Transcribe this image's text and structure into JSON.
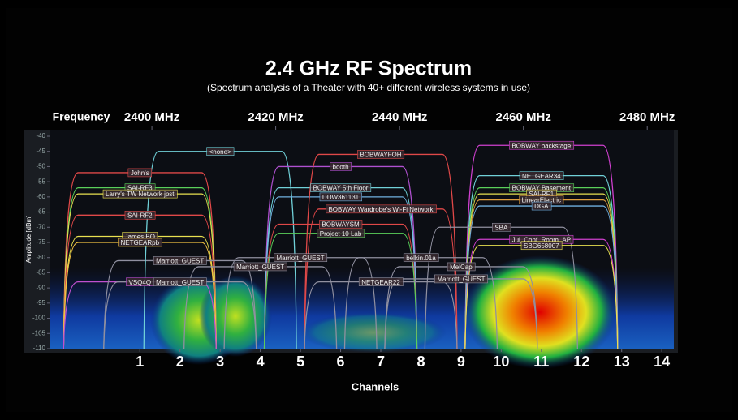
{
  "chart_data": {
    "type": "spectrum",
    "title": "2.4 GHz RF Spectrum",
    "subtitle": "(Spectrum analysis of a Theater with 40+ different wireless systems in use)",
    "frequency_label": "Frequency",
    "y_label": "Amplitude [dBm]",
    "x_label": "Channels",
    "xlim": [
      -1.23,
      14.3
    ],
    "xticks": [
      1,
      2,
      3,
      4,
      5,
      6,
      7,
      8,
      9,
      10,
      11,
      12,
      13,
      14
    ],
    "x2lim": [
      2383.6,
      2484.3
    ],
    "x2ticks": [
      {
        "value": 2400,
        "label": "2400 MHz"
      },
      {
        "value": 2420,
        "label": "2420 MHz"
      },
      {
        "value": 2440,
        "label": "2440 MHz"
      },
      {
        "value": 2460,
        "label": "2460 MHz"
      },
      {
        "value": 2480,
        "label": "2480 MHz"
      }
    ],
    "ylim": [
      -110,
      -40
    ],
    "yticks": [
      -40,
      -45,
      -50,
      -55,
      -60,
      -65,
      -70,
      -75,
      -80,
      -85,
      -90,
      -95,
      -100,
      -105,
      -110
    ],
    "networks": [
      {
        "name": "John's",
        "channel": 1,
        "level": -52,
        "color": "#e04848"
      },
      {
        "name": "SAI-RF3",
        "channel": 1,
        "level": -57,
        "color": "#5ad05a"
      },
      {
        "name": "Larry's TW Network jpst",
        "channel": 1,
        "level": -59,
        "color": "#e8e050"
      },
      {
        "name": "SAI-RF2",
        "channel": 1,
        "level": -66,
        "color": "#e04848"
      },
      {
        "name": "James BO",
        "channel": 1,
        "level": -73,
        "color": "#e8e050"
      },
      {
        "name": "NETGEARpb",
        "channel": 1,
        "level": -75,
        "color": "#f0c040"
      },
      {
        "name": "VSQ4Q",
        "channel": 1,
        "level": -88,
        "color": "#c050d0"
      },
      {
        "name": "Marriott_GUEST",
        "channel": 2,
        "level": -81,
        "color": "#9090a0"
      },
      {
        "name": "Marriott_GUEST",
        "channel": 2,
        "level": -88,
        "color": "#9090a0"
      },
      {
        "name": "<none>",
        "channel": 3,
        "level": -45,
        "color": "#70d0d8"
      },
      {
        "name": "Marriott_GUEST",
        "channel": 4,
        "level": -83,
        "color": "#9090a0"
      },
      {
        "name": "booth",
        "channel": 6,
        "level": -50,
        "color": "#b050d0"
      },
      {
        "name": "BOBWAY 5th Floor",
        "channel": 6,
        "level": -57,
        "color": "#70d0d8"
      },
      {
        "name": "DDW361131",
        "channel": 6,
        "level": -60,
        "color": "#70b0e0"
      },
      {
        "name": "BOBWAYSM",
        "channel": 6,
        "level": -69,
        "color": "#e04848"
      },
      {
        "name": "Project 10 Lab",
        "channel": 6,
        "level": -72,
        "color": "#5ad05a"
      },
      {
        "name": "Marriott_GUEST",
        "channel": 5,
        "level": -80,
        "color": "#9090a0"
      },
      {
        "name": "BOBWAYFOH",
        "channel": 7,
        "level": -46,
        "color": "#e04848"
      },
      {
        "name": "BOBWAY Wardrobe's Wi-Fi Network",
        "channel": 7,
        "level": -64,
        "color": "#e04848"
      },
      {
        "name": "belkin.01a",
        "channel": 8,
        "level": -80,
        "color": "#9090a0"
      },
      {
        "name": "NETGEAR22",
        "channel": 7,
        "level": -88,
        "color": "#9090a0"
      },
      {
        "name": "MelCap",
        "channel": 9,
        "level": -83,
        "color": "#9090a0"
      },
      {
        "name": "Marriott_GUEST",
        "channel": 9,
        "level": -87,
        "color": "#9090a0"
      },
      {
        "name": "BOBWAY backstage",
        "channel": 11,
        "level": -43,
        "color": "#d040d0"
      },
      {
        "name": "NETGEAR34",
        "channel": 11,
        "level": -53,
        "color": "#70d0d8"
      },
      {
        "name": "BOBWAY Basement",
        "channel": 11,
        "level": -57,
        "color": "#5ad05a"
      },
      {
        "name": "SAI-RF1",
        "channel": 11,
        "level": -59,
        "color": "#e8e050"
      },
      {
        "name": "LinearElectric",
        "channel": 11,
        "level": -61,
        "color": "#e0a040"
      },
      {
        "name": "DGA",
        "channel": 11,
        "level": -63,
        "color": "#70b0e0"
      },
      {
        "name": "SBA",
        "channel": 10,
        "level": -70,
        "color": "#9090a0"
      },
      {
        "name": "Jui_Conf_Room_AP",
        "channel": 11,
        "level": -74,
        "color": "#d040d0"
      },
      {
        "name": "SBG658007",
        "channel": 11,
        "level": -76,
        "color": "#e8e050"
      }
    ]
  }
}
